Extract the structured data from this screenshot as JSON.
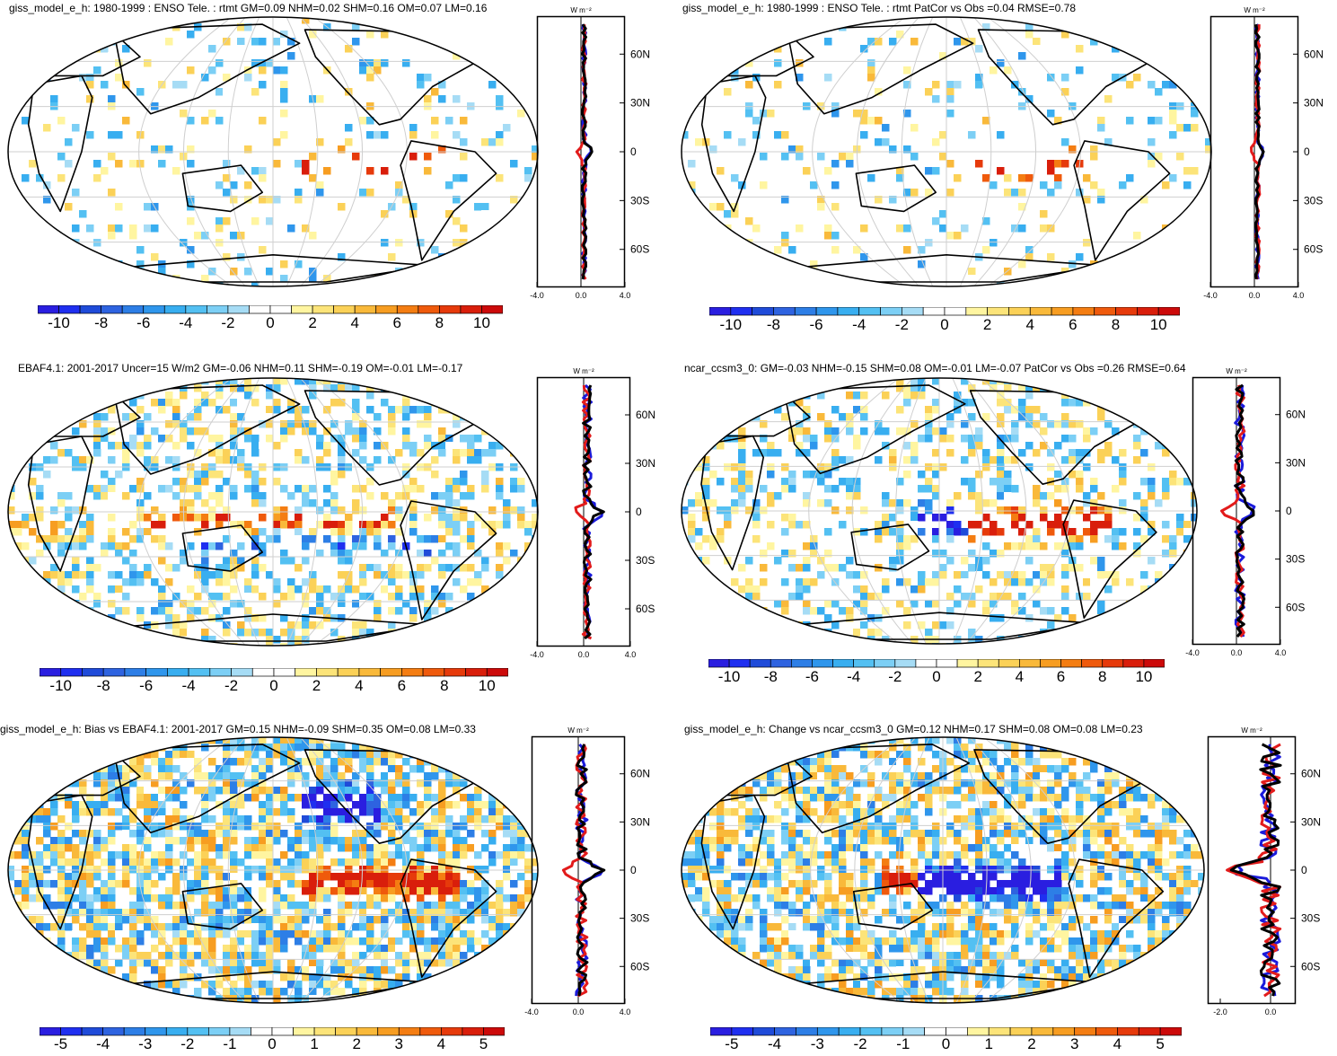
{
  "chart_data": [
    {
      "type": "heatmap",
      "title": "giss_model_e_h: 1980-1999 : ENSO Tele. : rtmt GM=0.09 NHM=0.02 SHM=0.16 OM=0.07 LM=0.16",
      "colorbar_ticks": [
        "-10",
        "-8",
        "-6",
        "-4",
        "-2",
        "0",
        "2",
        "4",
        "6",
        "8",
        "10"
      ],
      "clim": [
        -11,
        11
      ],
      "zonal": {
        "units": "W m⁻²",
        "xticks": [
          "-4.0",
          "0.0",
          "4.0"
        ],
        "xlim": [
          -4,
          4
        ],
        "lat_ticks": [
          "60N",
          "30N",
          "0",
          "30S",
          "60S"
        ]
      }
    },
    {
      "type": "heatmap",
      "title": "giss_model_e_h: 1980-1999 : ENSO Tele. : rtmt PatCor vs Obs =0.04 RMSE=0.78",
      "colorbar_ticks": [
        "-10",
        "-8",
        "-6",
        "-4",
        "-2",
        "0",
        "2",
        "4",
        "6",
        "8",
        "10"
      ],
      "clim": [
        -11,
        11
      ],
      "zonal": {
        "units": "W m⁻²",
        "xticks": [
          "-4.0",
          "0.0",
          "4.0"
        ],
        "xlim": [
          -4,
          4
        ],
        "lat_ticks": [
          "60N",
          "30N",
          "0",
          "30S",
          "60S"
        ]
      }
    },
    {
      "type": "heatmap",
      "title": "EBAF4.1: 2001-2017 Uncer=15 W/m2 GM=-0.06 NHM=0.11 SHM=-0.19 OM=-0.01 LM=-0.17",
      "colorbar_ticks": [
        "-10",
        "-8",
        "-6",
        "-4",
        "-2",
        "0",
        "2",
        "4",
        "6",
        "8",
        "10"
      ],
      "clim": [
        -11,
        11
      ],
      "zonal": {
        "units": "W m⁻²",
        "xticks": [
          "-4.0",
          "0.0",
          "4.0"
        ],
        "xlim": [
          -4,
          4
        ],
        "lat_ticks": [
          "60N",
          "30N",
          "0",
          "30S",
          "60S"
        ]
      }
    },
    {
      "type": "heatmap",
      "title": "ncar_ccsm3_0: GM=-0.03 NHM=-0.15 SHM=0.08 OM=-0.01 LM=-0.07 PatCor vs Obs =0.26 RMSE=0.64",
      "colorbar_ticks": [
        "-10",
        "-8",
        "-6",
        "-4",
        "-2",
        "0",
        "2",
        "4",
        "6",
        "8",
        "10"
      ],
      "clim": [
        -11,
        11
      ],
      "zonal": {
        "units": "W m⁻²",
        "xticks": [
          "-4.0",
          "0.0",
          "4.0"
        ],
        "xlim": [
          -4,
          4
        ],
        "lat_ticks": [
          "60N",
          "30N",
          "0",
          "30S",
          "60S"
        ]
      }
    },
    {
      "type": "heatmap",
      "title": "giss_model_e_h: Bias vs EBAF4.1: 2001-2017 GM=0.15 NHM=-0.09 SHM=0.35 OM=0.08 LM=0.33",
      "colorbar_ticks": [
        "-5",
        "-4",
        "-3",
        "-2",
        "-1",
        "0",
        "1",
        "2",
        "3",
        "4",
        "5"
      ],
      "clim": [
        -5.5,
        5.5
      ],
      "zonal": {
        "units": "W m⁻²",
        "xticks": [
          "-4.0",
          "0.0",
          "4.0"
        ],
        "xlim": [
          -4,
          4
        ],
        "lat_ticks": [
          "60N",
          "30N",
          "0",
          "30S",
          "60S"
        ]
      }
    },
    {
      "type": "heatmap",
      "title": "giss_model_e_h: Change vs ncar_ccsm3_0 GM=0.12 NHM=0.17 SHM=0.08 OM=0.08 LM=0.23",
      "colorbar_ticks": [
        "-5",
        "-4",
        "-3",
        "-2",
        "-1",
        "0",
        "1",
        "2",
        "3",
        "4",
        "5"
      ],
      "clim": [
        -5.5,
        5.5
      ],
      "zonal": {
        "units": "W m⁻²",
        "xticks": [
          "-2.0",
          "0.0"
        ],
        "xlim": [
          -2.5,
          1.0
        ],
        "lat_ticks": [
          "60N",
          "30N",
          "0",
          "30S",
          "60S"
        ]
      }
    }
  ]
}
